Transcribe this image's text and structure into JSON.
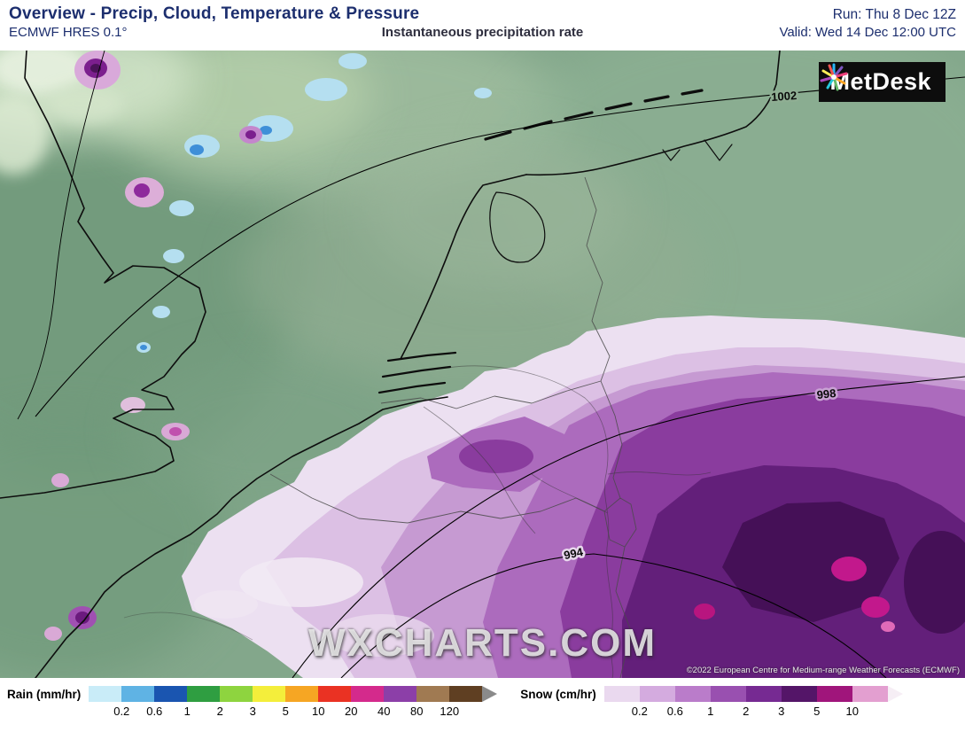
{
  "header": {
    "title": "Overview - Precip, Cloud, Temperature & Pressure",
    "run_label": "Run: Thu 8 Dec 12Z",
    "model_label": "ECMWF HRES 0.1°",
    "field_label": "Instantaneous precipitation rate",
    "valid_label": "Valid: Wed 14 Dec 12:00 UTC"
  },
  "map": {
    "watermark": "WXCHARTS.COM",
    "copyright": "©2022 European Centre for Medium-range Weather Forecasts (ECMWF)",
    "logo_text": "MetDesk",
    "isobar_labels": [
      "1002",
      "998",
      "994"
    ]
  },
  "legend": {
    "rain": {
      "label": "Rain (mm/hr)",
      "labels": [
        "0.2",
        "0.6",
        "1",
        "2",
        "3",
        "5",
        "10",
        "20",
        "40",
        "80",
        "120"
      ],
      "colors": [
        "#c9ecf8",
        "#5fb3e4",
        "#1a55b0",
        "#2f9e41",
        "#8ed43f",
        "#f4ee3b",
        "#f6a623",
        "#ea3223",
        "#d42a8c",
        "#8c3fa8",
        "#a07a52",
        "#5f3f22"
      ],
      "arrow": "#8a8a8a"
    },
    "snow": {
      "label": "Snow (cm/hr)",
      "labels": [
        "0.2",
        "0.6",
        "1",
        "2",
        "3",
        "5",
        "10"
      ],
      "colors": [
        "#ead9ef",
        "#d4abdf",
        "#ba7cca",
        "#9950b0",
        "#762a92",
        "#541568",
        "#a0157b",
        "#e39fd0"
      ],
      "arrow": "#f6eef5"
    }
  },
  "colors": {
    "accent_navy": "#1c2e6e",
    "map_base_green": "#83a78b",
    "snow_core_purple": "#451057",
    "magenta_spot": "#c2188c"
  }
}
